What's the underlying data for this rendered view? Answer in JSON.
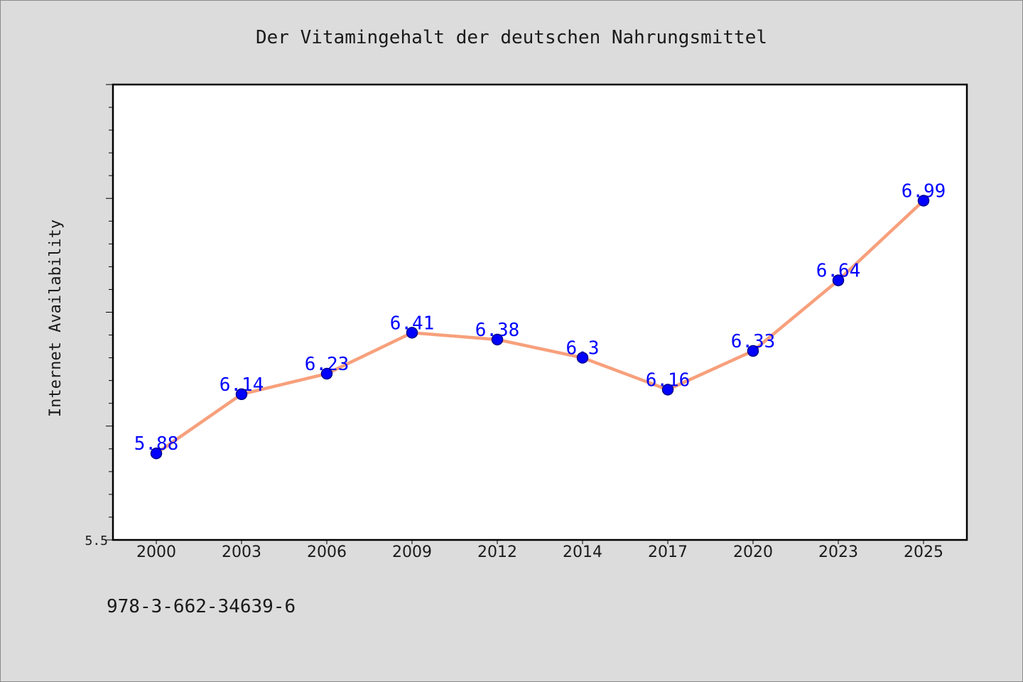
{
  "chart_data": {
    "type": "line",
    "title": "Der Vitamingehalt der deutschen Nahrungsmittel",
    "xlabel": "",
    "ylabel": "Internet Availability",
    "categories": [
      "2000",
      "2003",
      "2006",
      "2009",
      "2012",
      "2014",
      "2017",
      "2020",
      "2023",
      "2025"
    ],
    "series": [
      {
        "values": [
          5.88,
          6.14,
          6.23,
          6.41,
          6.38,
          6.3,
          6.16,
          6.33,
          6.64,
          6.99
        ]
      }
    ],
    "ylim": [
      5.5,
      7.5
    ],
    "ytick_labels": [
      "5.5"
    ],
    "ytick_minor_step": 0.1,
    "ytick_major_step": 0.5,
    "data_labels_shown": true,
    "grid": false,
    "legend": "none",
    "colors": {
      "background": "#dcdcdc",
      "plot_background": "#ffffff",
      "line": "#f7a07c",
      "marker": "#0000ff",
      "marker_edge": "#00008b",
      "data_label": "#0000ff",
      "text": "#1a1a1a"
    }
  },
  "footer": {
    "text": "978-3-662-34639-6"
  }
}
